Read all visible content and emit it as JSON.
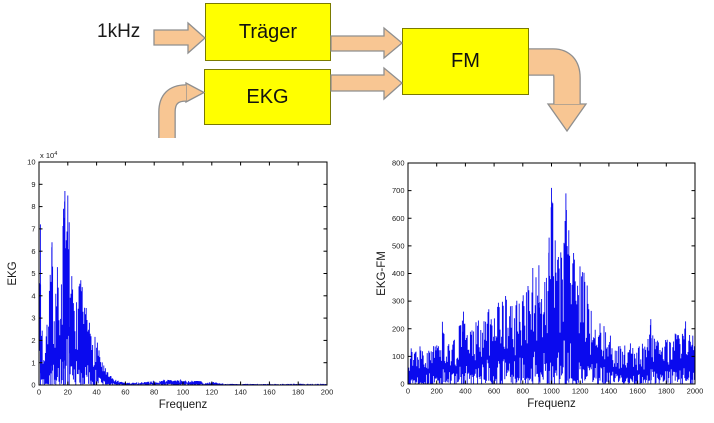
{
  "diagram": {
    "input_label": "1kHz",
    "blocks": [
      {
        "id": "traeger",
        "label": "Träger"
      },
      {
        "id": "ekg",
        "label": "EKG"
      },
      {
        "id": "fm",
        "label": "FM"
      }
    ],
    "colors": {
      "block_fill": "#ffff00",
      "block_border": "#7a7a00",
      "arrow_fill": "#f8c693",
      "arrow_border": "#8f8f8f"
    }
  },
  "chart_data": [
    {
      "type": "line",
      "subtype": "noisy-spectrum",
      "title": "",
      "xlabel": "Frequenz",
      "ylabel": "EKG",
      "y_exponent": {
        "base": "x 10",
        "sup": "4"
      },
      "xlim": [
        0,
        200
      ],
      "ylim": [
        0,
        10
      ],
      "xticks": [
        0,
        20,
        40,
        60,
        80,
        100,
        120,
        140,
        160,
        180,
        200
      ],
      "yticks": [
        0,
        1,
        2,
        3,
        4,
        5,
        6,
        7,
        8,
        9,
        10
      ],
      "grid": false,
      "legend": null,
      "color": "#0a0aee",
      "envelope": [
        [
          0,
          3
        ],
        [
          1,
          7.2
        ],
        [
          1.5,
          4
        ],
        [
          2,
          3.2
        ],
        [
          3,
          1.4
        ],
        [
          4,
          1.6
        ],
        [
          5,
          2.2
        ],
        [
          6,
          3.4
        ],
        [
          7,
          4.6
        ],
        [
          8,
          5.3
        ],
        [
          9,
          6.4
        ],
        [
          10,
          4.4
        ],
        [
          11,
          4.2
        ],
        [
          12,
          4.8
        ],
        [
          13,
          5.6
        ],
        [
          14,
          4.2
        ],
        [
          15,
          4.6
        ],
        [
          16,
          6.2
        ],
        [
          17,
          8.0
        ],
        [
          18,
          8.7
        ],
        [
          19,
          6.6
        ],
        [
          20,
          8.5
        ],
        [
          21,
          7.3
        ],
        [
          22,
          5.4
        ],
        [
          23,
          4.8
        ],
        [
          24,
          4.4
        ],
        [
          25,
          4.1
        ],
        [
          26,
          4.0
        ],
        [
          27,
          4.2
        ],
        [
          28,
          4.5
        ],
        [
          29,
          4.7
        ],
        [
          30,
          4.4
        ],
        [
          31,
          4.0
        ],
        [
          32,
          3.7
        ],
        [
          33,
          3.4
        ],
        [
          34,
          3.2
        ],
        [
          35,
          3.0
        ],
        [
          36,
          2.9
        ],
        [
          37,
          2.5
        ],
        [
          38,
          2.2
        ],
        [
          39,
          2.3
        ],
        [
          40,
          2.4
        ],
        [
          41,
          2.0
        ],
        [
          42,
          1.7
        ],
        [
          43,
          1.4
        ],
        [
          44,
          1.1
        ],
        [
          45,
          0.95
        ],
        [
          46,
          0.8
        ],
        [
          47,
          0.65
        ],
        [
          48,
          0.55
        ],
        [
          49,
          0.45
        ],
        [
          50,
          0.4
        ],
        [
          52,
          0.3
        ],
        [
          54,
          0.22
        ],
        [
          56,
          0.16
        ],
        [
          58,
          0.13
        ],
        [
          60,
          0.12
        ],
        [
          64,
          0.1
        ],
        [
          68,
          0.12
        ],
        [
          72,
          0.15
        ],
        [
          76,
          0.17
        ],
        [
          80,
          0.2
        ],
        [
          84,
          0.18
        ],
        [
          86,
          0.24
        ],
        [
          88,
          0.28
        ],
        [
          90,
          0.24
        ],
        [
          92,
          0.27
        ],
        [
          94,
          0.22
        ],
        [
          96,
          0.23
        ],
        [
          98,
          0.25
        ],
        [
          100,
          0.26
        ],
        [
          102,
          0.2
        ],
        [
          104,
          0.21
        ],
        [
          106,
          0.19
        ],
        [
          108,
          0.22
        ],
        [
          110,
          0.2
        ],
        [
          112,
          0.21
        ],
        [
          114,
          0.1
        ],
        [
          116,
          0.11
        ],
        [
          118,
          0.13
        ],
        [
          120,
          0.12
        ],
        [
          122,
          0.15
        ],
        [
          124,
          0.12
        ],
        [
          126,
          0.08
        ],
        [
          128,
          0.07
        ],
        [
          130,
          0.06
        ],
        [
          135,
          0.05
        ],
        [
          140,
          0.05
        ],
        [
          150,
          0.05
        ],
        [
          160,
          0.05
        ],
        [
          170,
          0.05
        ],
        [
          180,
          0.06
        ],
        [
          190,
          0.05
        ],
        [
          200,
          0.06
        ]
      ],
      "peaks": [
        [
          1,
          7.2
        ],
        [
          9,
          6.4
        ],
        [
          17,
          7.9
        ],
        [
          18,
          8.7
        ],
        [
          20,
          8.5
        ],
        [
          21,
          7.3
        ],
        [
          29,
          4.7
        ]
      ],
      "noise": {
        "seed": 7,
        "loMax": 0.3,
        "hiMin": 0.35,
        "pow": 0.7,
        "step": 0.8
      }
    },
    {
      "type": "line",
      "subtype": "noisy-spectrum",
      "title": "",
      "xlabel": "Frequenz",
      "ylabel": "EKG-FM",
      "y_exponent": null,
      "xlim": [
        0,
        2000
      ],
      "ylim": [
        0,
        800
      ],
      "xticks": [
        0,
        200,
        400,
        600,
        800,
        1000,
        1200,
        1400,
        1600,
        1800,
        2000
      ],
      "yticks": [
        0,
        100,
        200,
        300,
        400,
        500,
        600,
        700,
        800
      ],
      "grid": false,
      "legend": null,
      "color": "#0a0aee",
      "envelope": [
        [
          0,
          160
        ],
        [
          30,
          130
        ],
        [
          60,
          145
        ],
        [
          100,
          140
        ],
        [
          140,
          125
        ],
        [
          180,
          140
        ],
        [
          220,
          150
        ],
        [
          240,
          225
        ],
        [
          260,
          160
        ],
        [
          300,
          155
        ],
        [
          330,
          175
        ],
        [
          360,
          215
        ],
        [
          380,
          260
        ],
        [
          400,
          235
        ],
        [
          430,
          185
        ],
        [
          450,
          220
        ],
        [
          470,
          240
        ],
        [
          500,
          235
        ],
        [
          520,
          250
        ],
        [
          550,
          305
        ],
        [
          580,
          270
        ],
        [
          600,
          290
        ],
        [
          630,
          300
        ],
        [
          660,
          310
        ],
        [
          690,
          330
        ],
        [
          710,
          320
        ],
        [
          730,
          290
        ],
        [
          760,
          310
        ],
        [
          790,
          330
        ],
        [
          810,
          395
        ],
        [
          830,
          380
        ],
        [
          850,
          355
        ],
        [
          870,
          425
        ],
        [
          890,
          385
        ],
        [
          910,
          430
        ],
        [
          930,
          420
        ],
        [
          950,
          400
        ],
        [
          970,
          465
        ],
        [
          985,
          530
        ],
        [
          1000,
          710
        ],
        [
          1010,
          665
        ],
        [
          1025,
          600
        ],
        [
          1040,
          545
        ],
        [
          1055,
          500
        ],
        [
          1070,
          480
        ],
        [
          1085,
          560
        ],
        [
          1100,
          690
        ],
        [
          1110,
          650
        ],
        [
          1125,
          560
        ],
        [
          1140,
          500
        ],
        [
          1155,
          480
        ],
        [
          1170,
          465
        ],
        [
          1190,
          440
        ],
        [
          1210,
          425
        ],
        [
          1230,
          405
        ],
        [
          1250,
          360
        ],
        [
          1270,
          330
        ],
        [
          1290,
          320
        ],
        [
          1310,
          280
        ],
        [
          1330,
          255
        ],
        [
          1350,
          235
        ],
        [
          1380,
          205
        ],
        [
          1400,
          185
        ],
        [
          1430,
          160
        ],
        [
          1460,
          150
        ],
        [
          1490,
          135
        ],
        [
          1520,
          145
        ],
        [
          1550,
          150
        ],
        [
          1580,
          145
        ],
        [
          1610,
          150
        ],
        [
          1640,
          145
        ],
        [
          1670,
          155
        ],
        [
          1690,
          235
        ],
        [
          1710,
          225
        ],
        [
          1730,
          185
        ],
        [
          1760,
          165
        ],
        [
          1790,
          160
        ],
        [
          1820,
          175
        ],
        [
          1850,
          185
        ],
        [
          1880,
          200
        ],
        [
          1910,
          215
        ],
        [
          1940,
          230
        ],
        [
          1970,
          220
        ],
        [
          2000,
          230
        ]
      ],
      "peaks": [
        [
          983,
          530
        ],
        [
          998,
          640
        ],
        [
          1000,
          710
        ],
        [
          1003,
          660
        ],
        [
          1095,
          590
        ],
        [
          1100,
          690
        ],
        [
          1104,
          630
        ],
        [
          870,
          420
        ],
        [
          912,
          430
        ],
        [
          1692,
          235
        ],
        [
          240,
          225
        ],
        [
          387,
          262
        ]
      ],
      "noise": {
        "seed": 13,
        "loMax": 0.3,
        "hiMin": 0.3,
        "pow": 0.7,
        "step": 0.8
      }
    }
  ]
}
